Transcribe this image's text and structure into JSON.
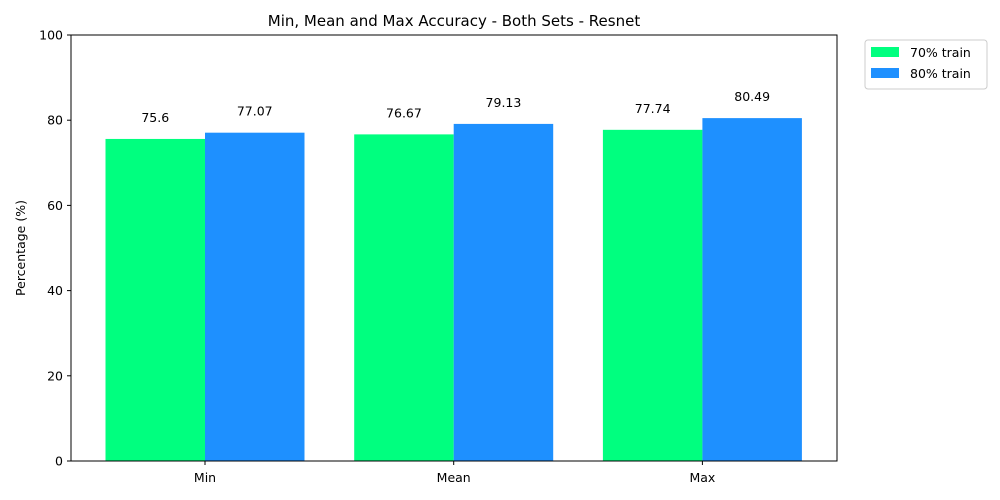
{
  "chart_data": {
    "type": "bar",
    "title": "Min, Mean and Max Accuracy - Both Sets - Resnet",
    "xlabel": "",
    "ylabel": "Percentage (%)",
    "ylim": [
      0,
      100
    ],
    "yticks": [
      "0",
      "20",
      "40",
      "60",
      "80",
      "100"
    ],
    "categories": [
      "Min",
      "Mean",
      "Max"
    ],
    "series": [
      {
        "name": "70% train",
        "color": "#00ff7f",
        "values": [
          75.6,
          76.67,
          77.74
        ],
        "labels": [
          "75.6",
          "76.67",
          "77.74"
        ]
      },
      {
        "name": "80% train",
        "color": "#1e90ff",
        "values": [
          77.07,
          79.13,
          80.49
        ],
        "labels": [
          "77.07",
          "79.13",
          "80.49"
        ]
      }
    ],
    "legend": "outside-top-right",
    "grid": false
  }
}
